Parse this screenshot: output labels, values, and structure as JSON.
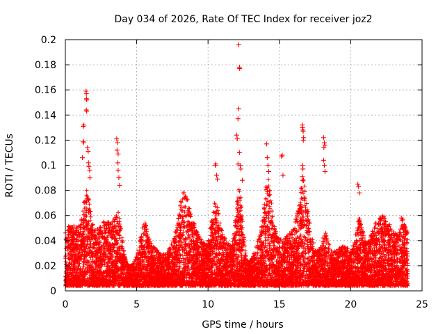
{
  "chart_data": {
    "type": "scatter",
    "title": "Day 034 of 2026, Rate Of TEC Index for receiver joz2",
    "xlabel": "GPS time / hours",
    "ylabel": "ROTI / TECUs",
    "xlim": [
      0,
      25
    ],
    "ylim": [
      0,
      0.2
    ],
    "xticks": [
      "0",
      "5",
      "10",
      "15",
      "20",
      "25"
    ],
    "yticks": [
      "0",
      "0.02",
      "0.04",
      "0.06",
      "0.08",
      "0.1",
      "0.12",
      "0.14",
      "0.16",
      "0.18",
      "0.2"
    ],
    "grid": true,
    "marker": "plus",
    "color": "#ff0000",
    "series": [
      {
        "name": "",
        "points": [
          [
            1.25,
            0.131
          ],
          [
            1.3,
            0.132
          ],
          [
            1.25,
            0.119
          ],
          [
            1.28,
            0.118
          ],
          [
            1.2,
            0.106
          ],
          [
            1.45,
            0.159
          ],
          [
            1.47,
            0.157
          ],
          [
            1.48,
            0.153
          ],
          [
            1.5,
            0.152
          ],
          [
            1.47,
            0.144
          ],
          [
            1.5,
            0.143
          ],
          [
            1.55,
            0.114
          ],
          [
            1.6,
            0.111
          ],
          [
            1.62,
            0.102
          ],
          [
            1.65,
            0.099
          ],
          [
            1.7,
            0.096
          ],
          [
            1.72,
            0.09
          ],
          [
            3.6,
            0.121
          ],
          [
            3.65,
            0.118
          ],
          [
            3.62,
            0.112
          ],
          [
            3.7,
            0.109
          ],
          [
            3.68,
            0.102
          ],
          [
            3.7,
            0.096
          ],
          [
            3.75,
            0.09
          ],
          [
            3.8,
            0.084
          ],
          [
            10.5,
            0.1
          ],
          [
            10.55,
            0.101
          ],
          [
            10.6,
            0.092
          ],
          [
            10.65,
            0.089
          ],
          [
            12.0,
            0.124
          ],
          [
            12.05,
            0.121
          ],
          [
            12.1,
            0.101
          ],
          [
            12.15,
            0.196
          ],
          [
            12.2,
            0.178
          ],
          [
            12.22,
            0.177
          ],
          [
            12.15,
            0.145
          ],
          [
            12.1,
            0.137
          ],
          [
            12.2,
            0.11
          ],
          [
            12.25,
            0.1
          ],
          [
            12.3,
            0.097
          ],
          [
            12.4,
            0.088
          ],
          [
            14.1,
            0.117
          ],
          [
            14.15,
            0.106
          ],
          [
            14.2,
            0.1
          ],
          [
            14.25,
            0.095
          ],
          [
            15.15,
            0.107
          ],
          [
            15.2,
            0.108
          ],
          [
            15.25,
            0.092
          ],
          [
            16.6,
            0.132
          ],
          [
            16.62,
            0.13
          ],
          [
            16.65,
            0.128
          ],
          [
            16.67,
            0.127
          ],
          [
            16.7,
            0.122
          ],
          [
            16.68,
            0.12
          ],
          [
            16.62,
            0.1
          ],
          [
            16.65,
            0.097
          ],
          [
            16.6,
            0.091
          ],
          [
            16.62,
            0.088
          ],
          [
            18.1,
            0.122
          ],
          [
            18.15,
            0.118
          ],
          [
            18.2,
            0.116
          ],
          [
            18.12,
            0.114
          ],
          [
            18.1,
            0.104
          ],
          [
            18.15,
            0.1
          ],
          [
            18.2,
            0.095
          ],
          [
            20.5,
            0.085
          ],
          [
            20.55,
            0.083
          ],
          [
            20.6,
            0.078
          ],
          [
            23.55,
            0.058
          ],
          [
            23.6,
            0.056
          ],
          [
            23.65,
            0.057
          ]
        ]
      }
    ]
  }
}
